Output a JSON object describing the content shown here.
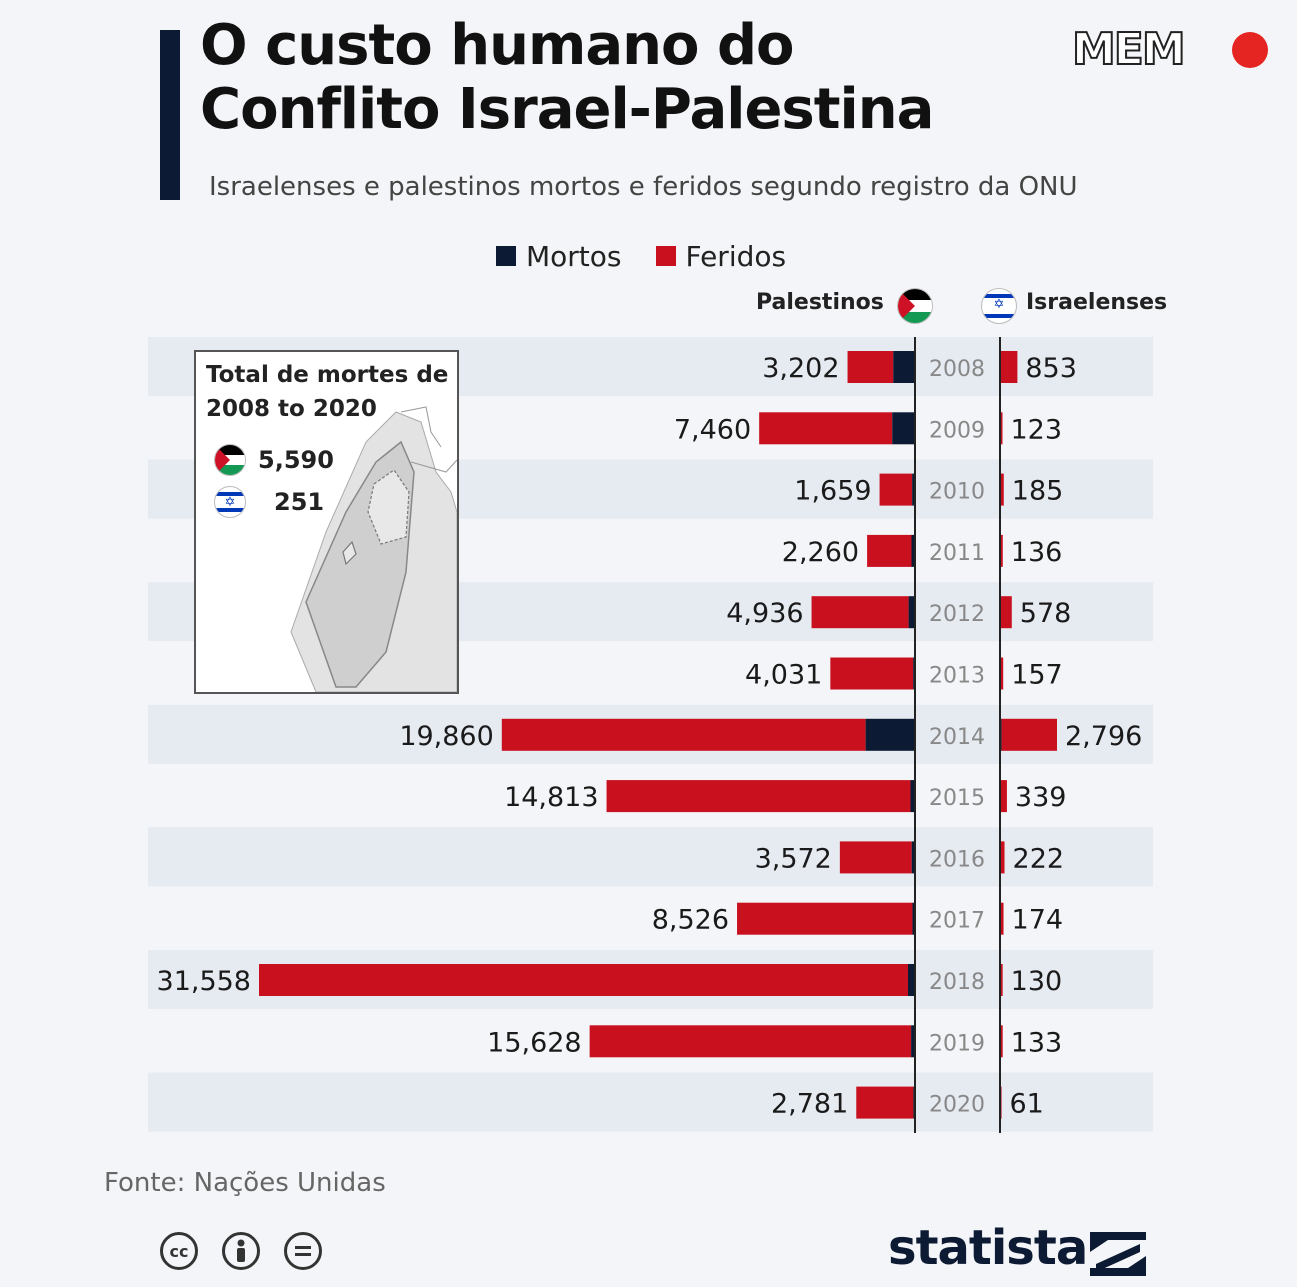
{
  "header": {
    "title_line1": "O custo humano do",
    "title_line2": "Conflito Israel-Palestina",
    "subtitle": "Israelenses e palestinos mortos e feridos segundo registro da ONU",
    "logo": "MEM"
  },
  "legend": {
    "mortos": "Mortos",
    "feridos": "Feridos"
  },
  "columns": {
    "palestinos": "Palestinos",
    "israelenses": "Israelenses"
  },
  "inset": {
    "title_line1": "Total de mortes de",
    "title_line2": "2008 to 2020",
    "palestinian_total": "5,590",
    "israeli_total": "251"
  },
  "footer": {
    "source": "Fonte: Nações Unidas",
    "brand": "statista",
    "license_icons": [
      "cc-icon",
      "attribution-icon",
      "no-derivatives-icon"
    ]
  },
  "colors": {
    "mortos": "#0d1a33",
    "feridos": "#c8101e",
    "row_stripe": "#e6eaf1"
  },
  "chart_data": {
    "type": "bar",
    "orientation": "horizontal-butterfly",
    "categories": [
      "2008",
      "2009",
      "2010",
      "2011",
      "2012",
      "2013",
      "2014",
      "2015",
      "2016",
      "2017",
      "2018",
      "2019",
      "2020"
    ],
    "palestinians_total": [
      3202,
      7460,
      1659,
      2260,
      4936,
      4031,
      19860,
      14813,
      3572,
      8526,
      31558,
      15628,
      2781
    ],
    "palestinians_total_labels": [
      "3,202",
      "7,460",
      "1,659",
      "2,260",
      "4,936",
      "4,031",
      "19,860",
      "14,813",
      "3,572",
      "8,526",
      "31,558",
      "15,628",
      "2,781"
    ],
    "palestinians_killed_estimate": [
      1000,
      1050,
      90,
      120,
      260,
      40,
      2330,
      170,
      110,
      75,
      290,
      140,
      30
    ],
    "israelis_total": [
      853,
      123,
      185,
      136,
      578,
      157,
      2796,
      339,
      222,
      174,
      130,
      133,
      61
    ],
    "israelis_total_labels": [
      "853",
      "123",
      "185",
      "136",
      "578",
      "157",
      "2,796",
      "339",
      "222",
      "174",
      "130",
      "133",
      "61"
    ],
    "israelis_killed_estimate": [
      31,
      9,
      9,
      11,
      7,
      6,
      80,
      28,
      15,
      15,
      14,
      10,
      3
    ],
    "series": [
      {
        "name": "Mortos"
      },
      {
        "name": "Feridos"
      }
    ]
  }
}
